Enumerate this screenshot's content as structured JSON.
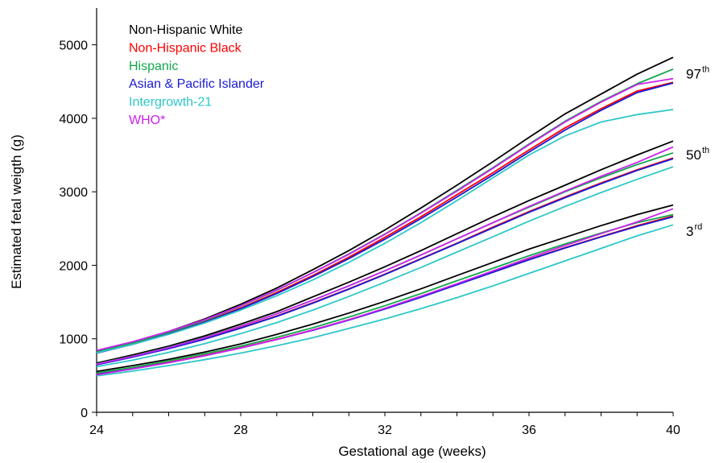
{
  "chart_data": {
    "type": "line",
    "xlabel": "Gestational age (weeks)",
    "ylabel": "Estimated fetal weigth (g)",
    "xlim": [
      24,
      40
    ],
    "ylim": [
      0,
      5500
    ],
    "x_ticks": [
      "24",
      "28",
      "32",
      "36",
      "40"
    ],
    "y_ticks": [
      "0",
      "1000",
      "2000",
      "3000",
      "4000",
      "5000"
    ],
    "x_minor_step": 1,
    "grid": false,
    "legend_position": "top-left",
    "x": [
      24,
      25,
      26,
      27,
      28,
      29,
      30,
      31,
      32,
      33,
      34,
      35,
      36,
      37,
      38,
      39,
      40
    ],
    "series": [
      {
        "name": "Non-Hispanic White",
        "color": "#000000",
        "p97": [
          830,
          955,
          1100,
          1270,
          1470,
          1690,
          1940,
          2200,
          2480,
          2780,
          3090,
          3410,
          3740,
          4060,
          4330,
          4600,
          4830
        ],
        "p50": [
          670,
          780,
          900,
          1040,
          1200,
          1370,
          1570,
          1770,
          1980,
          2200,
          2430,
          2660,
          2880,
          3090,
          3300,
          3500,
          3690
        ],
        "p3": [
          555,
          635,
          720,
          820,
          930,
          1060,
          1200,
          1350,
          1510,
          1680,
          1860,
          2040,
          2220,
          2380,
          2540,
          2690,
          2820
        ]
      },
      {
        "name": "Non-Hispanic Black",
        "color": "#ff0000",
        "p97": [
          810,
          930,
          1070,
          1230,
          1420,
          1630,
          1860,
          2110,
          2380,
          2660,
          2960,
          3260,
          3570,
          3870,
          4130,
          4370,
          4490
        ],
        "p50": [
          650,
          755,
          870,
          1000,
          1150,
          1310,
          1490,
          1680,
          1880,
          2090,
          2300,
          2520,
          2730,
          2930,
          3120,
          3300,
          3460
        ],
        "p3": [
          520,
          595,
          680,
          775,
          880,
          995,
          1120,
          1260,
          1410,
          1570,
          1740,
          1910,
          2080,
          2240,
          2390,
          2540,
          2670
        ]
      },
      {
        "name": "Hispanic",
        "color": "#11a84a",
        "p97": [
          820,
          945,
          1085,
          1250,
          1445,
          1660,
          1900,
          2155,
          2425,
          2715,
          3020,
          3330,
          3650,
          3960,
          4230,
          4470,
          4670
        ],
        "p50": [
          660,
          765,
          885,
          1020,
          1175,
          1340,
          1525,
          1720,
          1925,
          2140,
          2360,
          2580,
          2790,
          3000,
          3190,
          3370,
          3530
        ],
        "p3": [
          535,
          610,
          700,
          795,
          900,
          1020,
          1150,
          1295,
          1450,
          1615,
          1790,
          1960,
          2130,
          2290,
          2440,
          2580,
          2690
        ]
      },
      {
        "name": "Asian & Pacific Islander",
        "color": "#1a1ad6",
        "p97": [
          805,
          925,
          1065,
          1225,
          1410,
          1615,
          1845,
          2090,
          2355,
          2635,
          2930,
          3230,
          3540,
          3840,
          4110,
          4350,
          4480
        ],
        "p50": [
          645,
          750,
          865,
          995,
          1145,
          1305,
          1485,
          1675,
          1875,
          2085,
          2295,
          2510,
          2720,
          2920,
          3110,
          3290,
          3450
        ],
        "p3": [
          515,
          590,
          675,
          770,
          875,
          990,
          1115,
          1255,
          1405,
          1565,
          1735,
          1905,
          2075,
          2235,
          2385,
          2530,
          2660
        ]
      },
      {
        "name": "Intergrowth-21",
        "color": "#2ec7c7",
        "p97": [
          810,
          925,
          1060,
          1215,
          1390,
          1585,
          1800,
          2040,
          2300,
          2580,
          2880,
          3190,
          3500,
          3760,
          3950,
          4050,
          4120
        ],
        "p50": [
          620,
          710,
          815,
          935,
          1070,
          1220,
          1390,
          1575,
          1770,
          1970,
          2180,
          2390,
          2600,
          2800,
          2990,
          3170,
          3340
        ],
        "p3": [
          495,
          560,
          635,
          715,
          805,
          905,
          1015,
          1140,
          1270,
          1410,
          1560,
          1720,
          1890,
          2060,
          2230,
          2400,
          2550
        ]
      },
      {
        "name": "WHO*",
        "color": "#cc22ee",
        "p97": [
          840,
          960,
          1100,
          1260,
          1450,
          1665,
          1900,
          2150,
          2420,
          2710,
          3010,
          3320,
          3640,
          3950,
          4220,
          4460,
          4540
        ],
        "p50": [
          655,
          760,
          880,
          1015,
          1170,
          1340,
          1525,
          1720,
          1925,
          2140,
          2360,
          2580,
          2800,
          3010,
          3210,
          3400,
          3610
        ],
        "p3": [
          510,
          590,
          675,
          770,
          875,
          990,
          1120,
          1260,
          1415,
          1580,
          1750,
          1925,
          2100,
          2270,
          2430,
          2590,
          2770
        ]
      }
    ],
    "percentile_labels": [
      {
        "base": "97",
        "sup": "th",
        "value": 4540
      },
      {
        "base": "50",
        "sup": "th",
        "value": 3440
      },
      {
        "base": "3",
        "sup": "rd",
        "value": 2400
      }
    ]
  }
}
